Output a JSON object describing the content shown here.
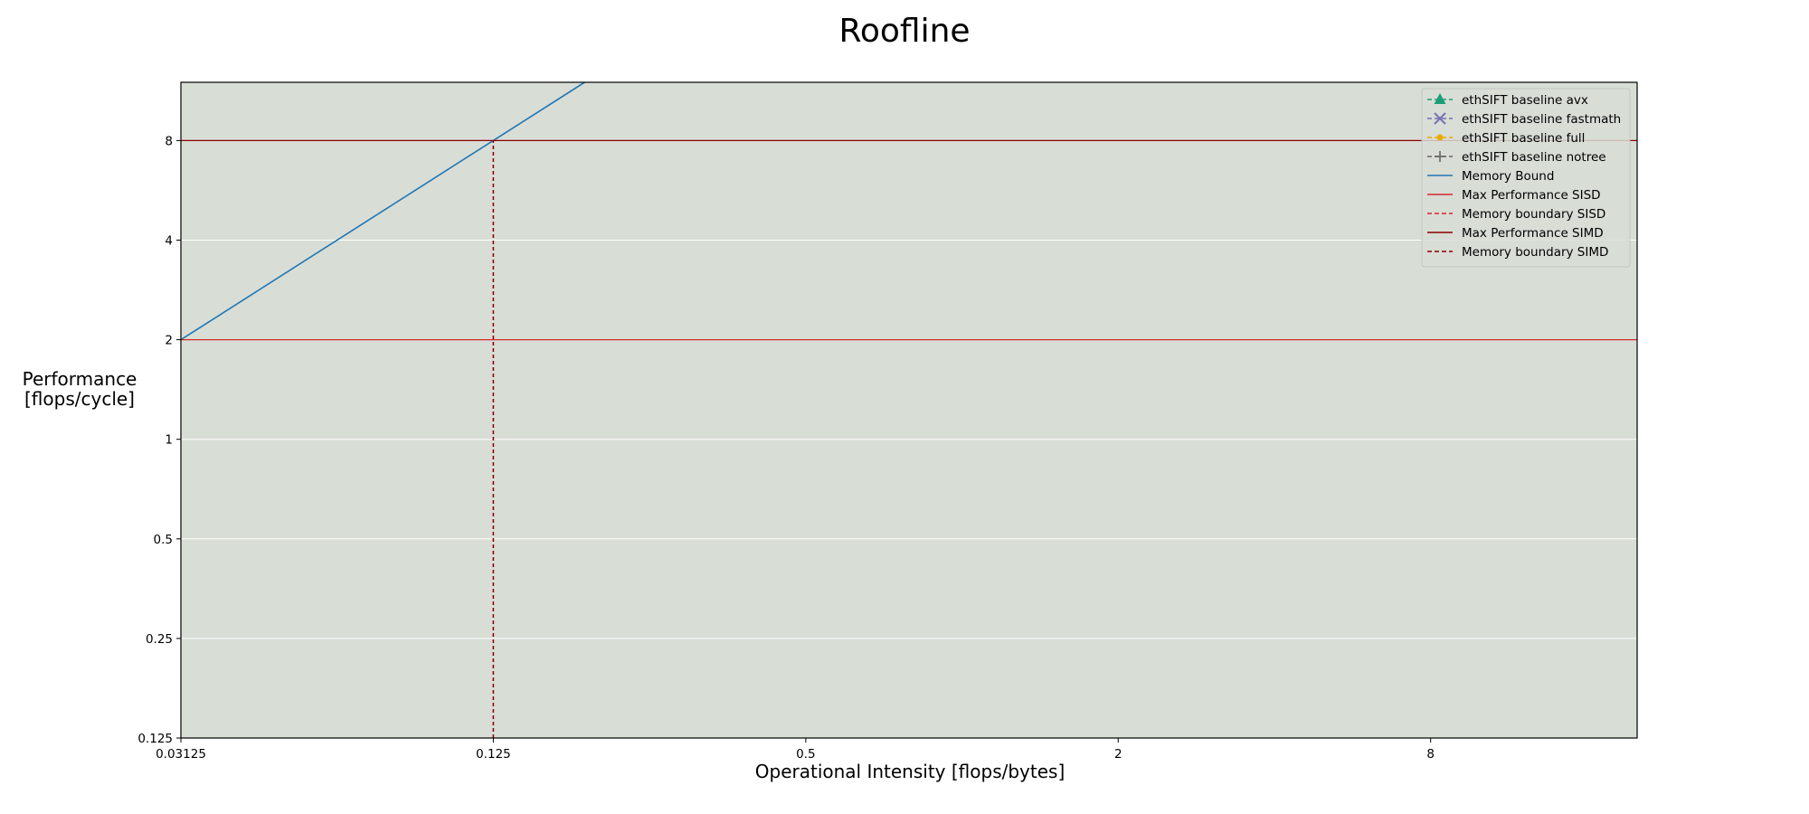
{
  "chart_data": {
    "type": "line",
    "title": "Roofline",
    "xlabel": "Operational Intensity [flops/bytes]",
    "ylabel": [
      "Performance",
      "[flops/cycle]"
    ],
    "xscale": "log2",
    "yscale": "log2",
    "xlim": [
      0.03125,
      20
    ],
    "ylim": [
      0.125,
      12
    ],
    "x_ticks": [
      0.03125,
      0.125,
      0.5,
      2,
      8
    ],
    "x_tick_labels": [
      "0.03125",
      "0.125",
      "0.5",
      "2",
      "8"
    ],
    "y_ticks": [
      0.125,
      0.25,
      0.5,
      1,
      2,
      4,
      8
    ],
    "y_tick_labels": [
      "0.125",
      "0.25",
      "0.5",
      "1",
      "2",
      "4",
      "8"
    ],
    "grid": true,
    "background_color": "#d8ddd6",
    "legend_position": "top-right",
    "series": [
      {
        "name": "ethSIFT baseline avx",
        "kind": "marker",
        "marker": "triangle",
        "color": "#1b9e77",
        "style": "dashed",
        "points": []
      },
      {
        "name": "ethSIFT baseline fastmath",
        "kind": "marker",
        "marker": "x",
        "color": "#7570b3",
        "style": "dashed",
        "points": []
      },
      {
        "name": "ethSIFT baseline full",
        "kind": "marker",
        "marker": "dot",
        "color": "#e6ab02",
        "style": "dashed",
        "points": []
      },
      {
        "name": "ethSIFT baseline notree",
        "kind": "marker",
        "marker": "plus",
        "color": "#666666",
        "style": "dashed",
        "points": []
      },
      {
        "name": "Memory Bound",
        "kind": "line",
        "color": "#1f77b4",
        "style": "solid",
        "points": [
          [
            0.03125,
            2
          ],
          [
            0.1976,
            12.65
          ]
        ]
      },
      {
        "name": "Max Performance SISD",
        "kind": "hline",
        "color": "#d62728",
        "style": "solid",
        "y": 2
      },
      {
        "name": "Memory boundary SISD",
        "kind": "vline",
        "color": "#d62728",
        "style": "dashed",
        "x": 0.125,
        "y_top": 8
      },
      {
        "name": "Max Performance SIMD",
        "kind": "hline",
        "color": "#8b0000",
        "style": "solid",
        "y": 8
      },
      {
        "name": "Memory boundary SIMD",
        "kind": "vline",
        "color": "#8b0000",
        "style": "dashed",
        "x": 0.125,
        "y_top": 8
      }
    ]
  }
}
